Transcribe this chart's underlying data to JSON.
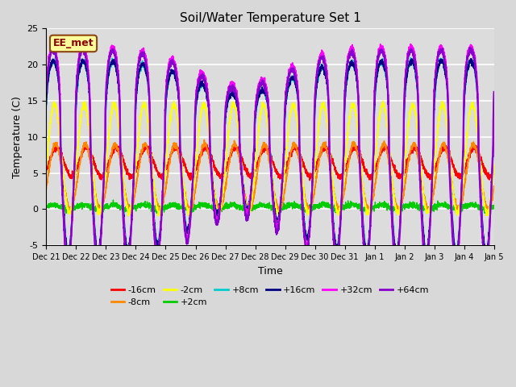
{
  "title": "Soil/Water Temperature Set 1",
  "xlabel": "Time",
  "ylabel": "Temperature (C)",
  "ylim": [
    -5,
    25
  ],
  "fig_bg": "#d8d8d8",
  "plot_bg": "#dcdcdc",
  "annotation_text": "EE_met",
  "annotation_bg": "#ffff99",
  "annotation_border": "#8b4513",
  "series": [
    {
      "label": "-16cm",
      "color": "#ff0000",
      "lw": 1.2,
      "base": 6.5,
      "amp": 2.0,
      "phase": 0.6,
      "spike": false,
      "min_clip": 3.0
    },
    {
      "label": "-8cm",
      "color": "#ff8800",
      "lw": 1.2,
      "base": 4.5,
      "amp": 4.5,
      "phase": 0.35,
      "spike": false,
      "min_clip": -1.0
    },
    {
      "label": "-2cm",
      "color": "#ffff00",
      "lw": 1.2,
      "base": 7.0,
      "amp": 7.5,
      "phase": 0.15,
      "spike": false,
      "min_clip": -1.0
    },
    {
      "label": "+2cm",
      "color": "#00cc00",
      "lw": 1.0,
      "base": 0.3,
      "amp": 0.3,
      "phase": 0.0,
      "spike": false,
      "min_clip": -0.5
    },
    {
      "label": "+8cm",
      "color": "#00cccc",
      "lw": 1.2,
      "base": 9.0,
      "amp": 11.5,
      "phase": -0.1,
      "spike": true,
      "min_clip": -4.0
    },
    {
      "label": "+16cm",
      "color": "#000080",
      "lw": 1.2,
      "base": 9.0,
      "amp": 11.5,
      "phase": -0.12,
      "spike": true,
      "min_clip": -4.0
    },
    {
      "label": "+32cm",
      "color": "#ff00ff",
      "lw": 1.5,
      "base": 9.5,
      "amp": 13.0,
      "phase": -0.15,
      "spike": true,
      "min_clip": -4.5
    },
    {
      "label": "+64cm",
      "color": "#8800cc",
      "lw": 1.5,
      "base": 9.0,
      "amp": 13.0,
      "phase": -0.18,
      "spike": true,
      "min_clip": -4.5
    }
  ],
  "tick_labels": [
    "Dec 21",
    "Dec 22",
    "Dec 23",
    "Dec 24",
    "Dec 25",
    "Dec 26",
    "Dec 27",
    "Dec 28",
    "Dec 29",
    "Dec 30",
    "Dec 31",
    "Jan 1",
    "Jan 2",
    "Jan 3",
    "Jan 4",
    "Jan 5"
  ],
  "yticks": [
    -5,
    0,
    5,
    10,
    15,
    20,
    25
  ]
}
